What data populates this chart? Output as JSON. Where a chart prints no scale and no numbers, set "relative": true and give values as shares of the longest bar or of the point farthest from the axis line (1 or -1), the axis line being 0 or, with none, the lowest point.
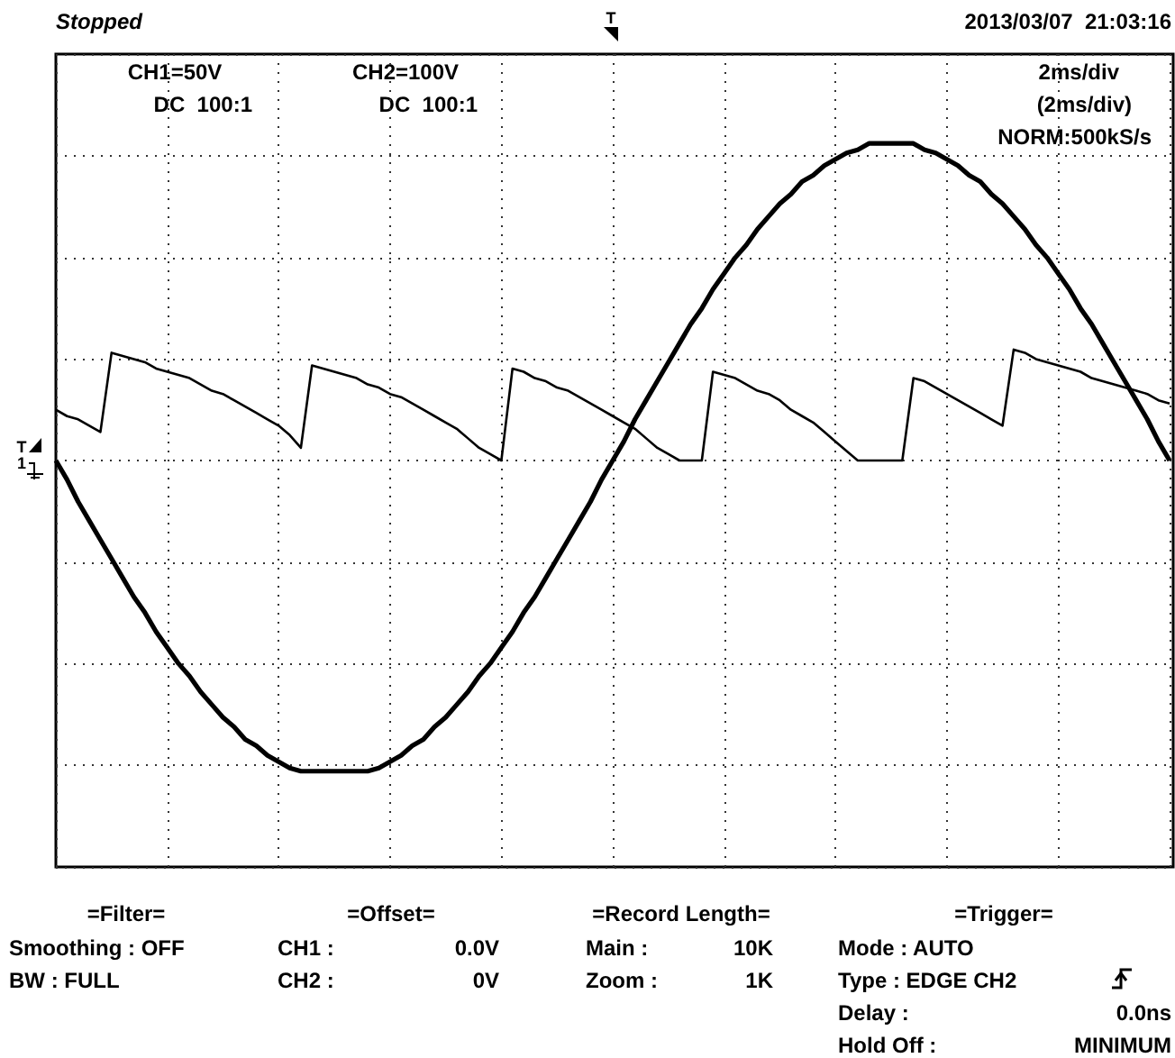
{
  "chart_data": {
    "type": "line",
    "relative": true,
    "grid": true,
    "line_style": "solid",
    "categories": [
      null,
      null,
      null,
      null,
      null,
      null,
      null,
      null,
      null,
      null,
      null,
      null,
      null,
      null,
      null,
      null,
      null,
      null,
      null,
      null,
      null,
      null,
      null,
      null,
      null,
      null,
      null,
      null,
      null,
      null,
      null,
      null,
      null,
      null,
      null,
      null,
      null,
      null,
      null,
      null,
      null,
      null,
      null,
      null,
      null,
      null,
      null,
      null,
      null,
      null,
      null,
      null,
      null,
      null,
      null,
      null,
      null,
      null,
      null,
      null,
      null,
      null,
      null,
      null,
      null,
      null,
      null,
      null,
      null,
      null,
      null,
      null,
      null,
      null,
      null,
      null,
      null,
      null,
      null,
      null,
      null,
      null,
      null,
      null,
      null,
      null,
      null,
      null,
      null,
      null,
      null,
      null,
      null,
      null,
      null,
      null,
      null,
      null,
      null,
      null,
      null
    ],
    "series": [
      {
        "color": "#000000",
        "values": [
          0.16,
          0.14,
          0.13,
          0.11,
          0.09,
          0.34,
          0.33,
          0.32,
          0.31,
          0.29,
          0.28,
          0.27,
          0.26,
          0.24,
          0.22,
          0.21,
          0.19,
          0.17,
          0.15,
          0.13,
          0.11,
          0.08,
          0.04,
          0.3,
          0.29,
          0.28,
          0.27,
          0.26,
          0.24,
          0.23,
          0.21,
          0.2,
          0.18,
          0.16,
          0.14,
          0.12,
          0.1,
          0.07,
          0.04,
          0.02,
          0,
          0.29,
          0.28,
          0.26,
          0.25,
          0.23,
          0.22,
          0.2,
          0.18,
          0.16,
          0.14,
          0.12,
          0.1,
          0.07,
          0.04,
          0.02,
          0,
          0,
          0,
          0.28,
          0.27,
          0.26,
          0.24,
          0.22,
          0.21,
          0.19,
          0.16,
          0.14,
          0.12,
          0.09,
          0.06,
          0.03,
          0,
          0,
          0,
          0,
          0,
          0.26,
          0.25,
          0.23,
          0.21,
          0.19,
          0.17,
          0.15,
          0.13,
          0.11,
          0.35,
          0.34,
          0.32,
          0.31,
          0.3,
          0.29,
          0.28,
          0.26,
          0.25,
          0.24,
          0.23,
          0.22,
          0.21,
          0.19,
          0.18
        ]
      },
      {
        "color": "#000000",
        "values": [
          0,
          -0.06,
          -0.13,
          -0.19,
          -0.25,
          -0.31,
          -0.37,
          -0.43,
          -0.48,
          -0.54,
          -0.59,
          -0.64,
          -0.68,
          -0.73,
          -0.77,
          -0.81,
          -0.84,
          -0.88,
          -0.9,
          -0.93,
          -0.95,
          -0.97,
          -0.98,
          -0.98,
          -0.98,
          -0.98,
          -0.98,
          -0.98,
          -0.98,
          -0.97,
          -0.95,
          -0.93,
          -0.9,
          -0.88,
          -0.84,
          -0.81,
          -0.77,
          -0.73,
          -0.68,
          -0.64,
          -0.59,
          -0.54,
          -0.48,
          -0.43,
          -0.37,
          -0.31,
          -0.25,
          -0.19,
          -0.13,
          -0.06,
          0,
          0.06,
          0.13,
          0.19,
          0.25,
          0.31,
          0.37,
          0.43,
          0.48,
          0.54,
          0.59,
          0.64,
          0.68,
          0.73,
          0.77,
          0.81,
          0.84,
          0.88,
          0.9,
          0.93,
          0.95,
          0.97,
          0.98,
          1,
          1,
          1,
          1,
          1,
          0.98,
          0.97,
          0.95,
          0.93,
          0.9,
          0.88,
          0.84,
          0.81,
          0.77,
          0.73,
          0.68,
          0.64,
          0.59,
          0.54,
          0.48,
          0.43,
          0.37,
          0.31,
          0.25,
          0.19,
          0.13,
          0.06,
          0
        ]
      }
    ],
    "annotations": [
      "Stopped",
      "2013/03/07  21:03:16",
      "CH1=50V",
      "DC  100:1",
      "CH2=100V",
      "DC  100:1",
      "2ms/div",
      "(2ms/div)",
      "NORM:500kS/s",
      "=Filter=",
      "Smoothing : OFF",
      "BW : FULL",
      "=Offset=",
      "CH1 :",
      "0.0V",
      "CH2 :",
      "0V",
      "=Record Length=",
      "Main :",
      "10K",
      "Zoom :",
      "1K",
      "=Trigger=",
      "Mode : AUTO",
      "Type : EDGE CH2",
      "Delay :",
      "0.0ns",
      "Hold Off :",
      "MINIMUM",
      "T",
      "T",
      "1"
    ]
  }
}
